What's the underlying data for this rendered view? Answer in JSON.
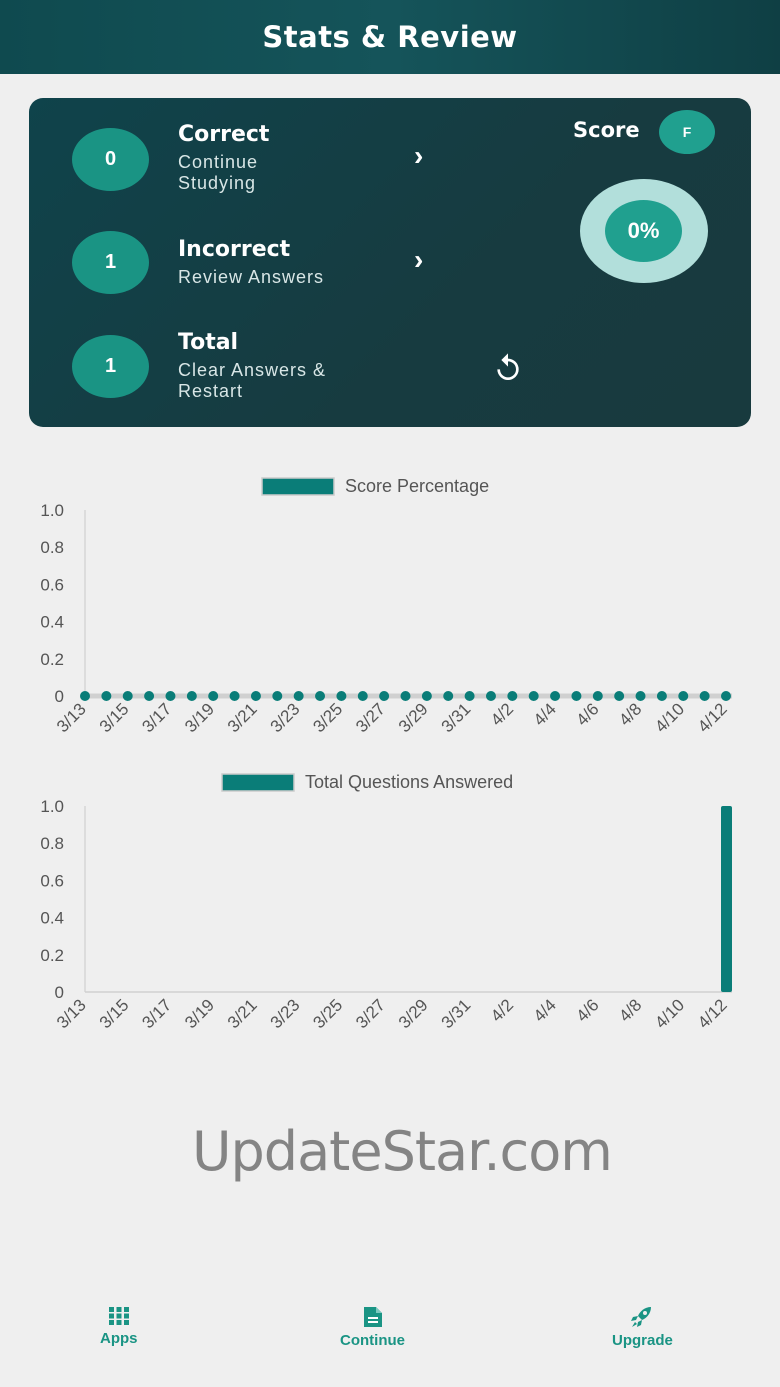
{
  "header": {
    "title": "Stats & Review"
  },
  "summary": {
    "rows": [
      {
        "count": "0",
        "title": "Correct",
        "subtitle": "Continue Studying",
        "action_icon": "chevron-right-icon"
      },
      {
        "count": "1",
        "title": "Incorrect",
        "subtitle": "Review Answers",
        "action_icon": "chevron-right-icon"
      },
      {
        "count": "1",
        "title": "Total",
        "subtitle": "Clear Answers & Restart",
        "action_icon": "restart-icon"
      }
    ],
    "score_label": "Score",
    "grade": "F",
    "score_percent": "0%"
  },
  "colors": {
    "accent": "#1a9484",
    "series": "#0a7d78",
    "header": "#14474d"
  },
  "chart_data": [
    {
      "type": "line",
      "legend": "Score Percentage",
      "legend_placement": "top",
      "x": [
        "3/13",
        "3/14",
        "3/15",
        "3/16",
        "3/17",
        "3/18",
        "3/19",
        "3/20",
        "3/21",
        "3/22",
        "3/23",
        "3/24",
        "3/25",
        "3/26",
        "3/27",
        "3/28",
        "3/29",
        "3/30",
        "3/31",
        "4/1",
        "4/2",
        "4/3",
        "4/4",
        "4/5",
        "4/6",
        "4/7",
        "4/8",
        "4/9",
        "4/10",
        "4/11",
        "4/12"
      ],
      "x_tick_labels": [
        "3/13",
        "3/15",
        "3/17",
        "3/19",
        "3/21",
        "3/23",
        "3/25",
        "3/27",
        "3/29",
        "3/31",
        "4/2",
        "4/4",
        "4/6",
        "4/8",
        "4/10",
        "4/12"
      ],
      "values": [
        0,
        0,
        0,
        0,
        0,
        0,
        0,
        0,
        0,
        0,
        0,
        0,
        0,
        0,
        0,
        0,
        0,
        0,
        0,
        0,
        0,
        0,
        0,
        0,
        0,
        0,
        0,
        0,
        0,
        0,
        0
      ],
      "y_tick_labels": [
        "0",
        "0.2",
        "0.4",
        "0.6",
        "0.8",
        "1.0"
      ],
      "ylim": [
        0,
        1.0
      ],
      "grid": false
    },
    {
      "type": "bar",
      "legend": "Total Questions Answered",
      "legend_placement": "top",
      "x": [
        "3/13",
        "3/14",
        "3/15",
        "3/16",
        "3/17",
        "3/18",
        "3/19",
        "3/20",
        "3/21",
        "3/22",
        "3/23",
        "3/24",
        "3/25",
        "3/26",
        "3/27",
        "3/28",
        "3/29",
        "3/30",
        "3/31",
        "4/1",
        "4/2",
        "4/3",
        "4/4",
        "4/5",
        "4/6",
        "4/7",
        "4/8",
        "4/9",
        "4/10",
        "4/11",
        "4/12"
      ],
      "x_tick_labels": [
        "3/13",
        "3/15",
        "3/17",
        "3/19",
        "3/21",
        "3/23",
        "3/25",
        "3/27",
        "3/29",
        "3/31",
        "4/2",
        "4/4",
        "4/6",
        "4/8",
        "4/10",
        "4/12"
      ],
      "values": [
        0,
        0,
        0,
        0,
        0,
        0,
        0,
        0,
        0,
        0,
        0,
        0,
        0,
        0,
        0,
        0,
        0,
        0,
        0,
        0,
        0,
        0,
        0,
        0,
        0,
        0,
        0,
        0,
        0,
        0,
        1
      ],
      "y_tick_labels": [
        "0",
        "0.2",
        "0.4",
        "0.6",
        "0.8",
        "1.0"
      ],
      "ylim": [
        0,
        1.0
      ],
      "grid": false
    }
  ],
  "watermark": "UpdateStar.com",
  "bottom_nav": [
    {
      "label": "Apps",
      "icon": "grid-icon"
    },
    {
      "label": "Continue",
      "icon": "document-icon"
    },
    {
      "label": "Upgrade",
      "icon": "rocket-icon"
    }
  ]
}
